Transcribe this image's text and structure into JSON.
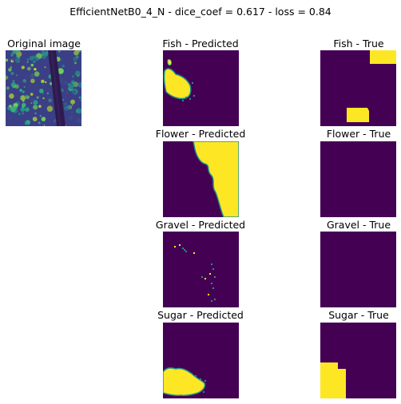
{
  "figure": {
    "title": "EfficientNetB0_4_N - dice_coef = 0.617 - loss = 0.84"
  },
  "original": {
    "label": "Original image"
  },
  "rows": [
    {
      "class": "Fish",
      "predicted_label": "Fish - Predicted",
      "true_label": "Fish - True"
    },
    {
      "class": "Flower",
      "predicted_label": "Flower - Predicted",
      "true_label": "Flower - True"
    },
    {
      "class": "Gravel",
      "predicted_label": "Gravel - Predicted",
      "true_label": "Gravel - True"
    },
    {
      "class": "Sugar",
      "predicted_label": "Sugar - Predicted",
      "true_label": "Sugar - True"
    }
  ],
  "colors": {
    "mask_background": "#440154",
    "mask_foreground": "#fde725",
    "mask_edge": "#21918c"
  }
}
